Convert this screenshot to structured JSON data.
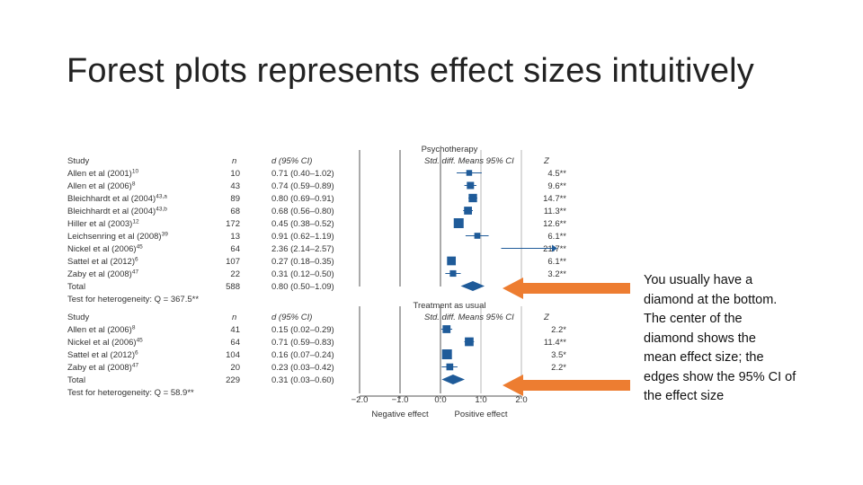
{
  "slide": {
    "title": "Forest plots represents effect sizes intuitively",
    "note_lines": [
      "You usually have a",
      "diamond at the bottom.",
      "The center of the",
      "diamond shows the",
      "mean effect size; the",
      "edges show the 95% CI of",
      "the effect size"
    ],
    "arrow_color": "#ED7D31"
  },
  "chart_data": {
    "type": "forest",
    "marker_color": "#1F5B99",
    "xaxis": {
      "range": [
        -2.0,
        2.0
      ],
      "ticks": [
        -2.0,
        -1.0,
        0.0,
        1.0,
        2.0
      ],
      "tick_labels": [
        "−2.0",
        "−1.0",
        "0.0",
        "1.0",
        "2.0"
      ],
      "negative_label": "Negative effect",
      "positive_label": "Positive effect"
    },
    "panels": [
      {
        "heading": "Psychotherapy",
        "col_study": "Study",
        "col_n": "n",
        "col_d": "d (95% CI)",
        "col_plot": "Std. diff. Means 95% CI",
        "col_z": "Z",
        "rows": [
          {
            "study": "Allen et al (2001)",
            "ref": "10",
            "n": "10",
            "d_ci": "0.71 (0.40–1.02)",
            "z": "4.5**",
            "d": 0.71,
            "lo": 0.4,
            "hi": 1.02,
            "weight": 10
          },
          {
            "study": "Allen et al (2006)",
            "ref": "8",
            "n": "43",
            "d_ci": "0.74 (0.59–0.89)",
            "z": "9.6**",
            "d": 0.74,
            "lo": 0.59,
            "hi": 0.89,
            "weight": 43
          },
          {
            "study": "Bleichhardt et al (2004)",
            "ref": "43,a",
            "n": "89",
            "d_ci": "0.80 (0.69–0.91)",
            "z": "14.7**",
            "d": 0.8,
            "lo": 0.69,
            "hi": 0.91,
            "weight": 89
          },
          {
            "study": "Bleichhardt et al (2004)",
            "ref": "43,b",
            "n": "68",
            "d_ci": "0.68 (0.56–0.80)",
            "z": "11.3**",
            "d": 0.68,
            "lo": 0.56,
            "hi": 0.8,
            "weight": 68
          },
          {
            "study": "Hiller et al (2003)",
            "ref": "12",
            "n": "172",
            "d_ci": "0.45 (0.38–0.52)",
            "z": "12.6**",
            "d": 0.45,
            "lo": 0.38,
            "hi": 0.52,
            "weight": 172
          },
          {
            "study": "Leichsenring et al (2008)",
            "ref": "39",
            "n": "13",
            "d_ci": "0.91 (0.62–1.19)",
            "z": "6.1**",
            "d": 0.91,
            "lo": 0.62,
            "hi": 1.19,
            "weight": 13
          },
          {
            "study": "Nickel et al (2006)",
            "ref": "45",
            "n": "64",
            "d_ci": "2.36 (2.14–2.57)",
            "z": "21.7**",
            "d": 2.36,
            "lo": 2.14,
            "hi": 2.57,
            "weight": 64,
            "off_scale": true
          },
          {
            "study": "Sattel et al (2012)",
            "ref": "6",
            "n": "107",
            "d_ci": "0.27 (0.18–0.35)",
            "z": "6.1**",
            "d": 0.27,
            "lo": 0.18,
            "hi": 0.35,
            "weight": 107
          },
          {
            "study": "Zaby et al (2008)",
            "ref": "47",
            "n": "22",
            "d_ci": "0.31 (0.12–0.50)",
            "z": "3.2**",
            "d": 0.31,
            "lo": 0.12,
            "hi": 0.5,
            "weight": 22
          }
        ],
        "total": {
          "label": "Total",
          "n": "588",
          "d_ci": "0.80 (0.50–1.09)",
          "d": 0.8,
          "lo": 0.5,
          "hi": 1.09
        },
        "heterogeneity": "Test for heterogeneity: Q = 367.5**"
      },
      {
        "heading": "Treatment as usual",
        "col_study": "Study",
        "col_n": "n",
        "col_d": "d (95% CI)",
        "col_plot": "Std. diff. Means 95% CI",
        "col_z": "Z",
        "rows": [
          {
            "study": "Allen et al (2006)",
            "ref": "8",
            "n": "41",
            "d_ci": "0.15 (0.02–0.29)",
            "z": "2.2*",
            "d": 0.15,
            "lo": 0.02,
            "hi": 0.29,
            "weight": 41
          },
          {
            "study": "Nickel et al (2006)",
            "ref": "45",
            "n": "64",
            "d_ci": "0.71 (0.59–0.83)",
            "z": "11.4**",
            "d": 0.71,
            "lo": 0.59,
            "hi": 0.83,
            "weight": 64
          },
          {
            "study": "Sattel et al (2012)",
            "ref": "6",
            "n": "104",
            "d_ci": "0.16 (0.07–0.24)",
            "z": "3.5*",
            "d": 0.16,
            "lo": 0.07,
            "hi": 0.24,
            "weight": 104
          },
          {
            "study": "Zaby et al (2008)",
            "ref": "47",
            "n": "20",
            "d_ci": "0.23 (0.03–0.42)",
            "z": "2.2*",
            "d": 0.23,
            "lo": 0.03,
            "hi": 0.42,
            "weight": 20
          }
        ],
        "total": {
          "label": "Total",
          "n": "229",
          "d_ci": "0.31 (0.03–0.60)",
          "d": 0.31,
          "lo": 0.03,
          "hi": 0.6
        },
        "heterogeneity": "Test for heterogeneity: Q = 58.9**"
      }
    ]
  }
}
